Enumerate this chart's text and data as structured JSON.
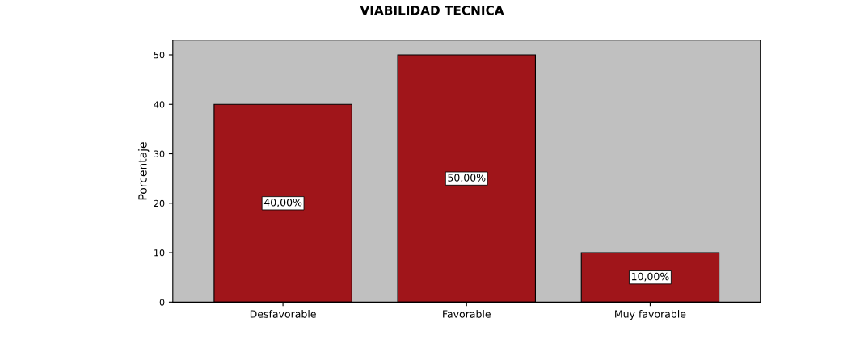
{
  "chart_data": {
    "type": "bar",
    "title": "VIABILIDAD TECNICA",
    "ylabel": "Porcentaje",
    "categories": [
      "Desfavorable",
      "Favorable",
      "Muy favorable"
    ],
    "values": [
      40,
      50,
      10
    ],
    "value_labels": [
      "40,00%",
      "50,00%",
      "10,00%"
    ],
    "color": "#a0151a",
    "ylim": [
      0,
      53
    ],
    "yticks": [
      0,
      10,
      20,
      30,
      40,
      50
    ],
    "grid": false
  }
}
